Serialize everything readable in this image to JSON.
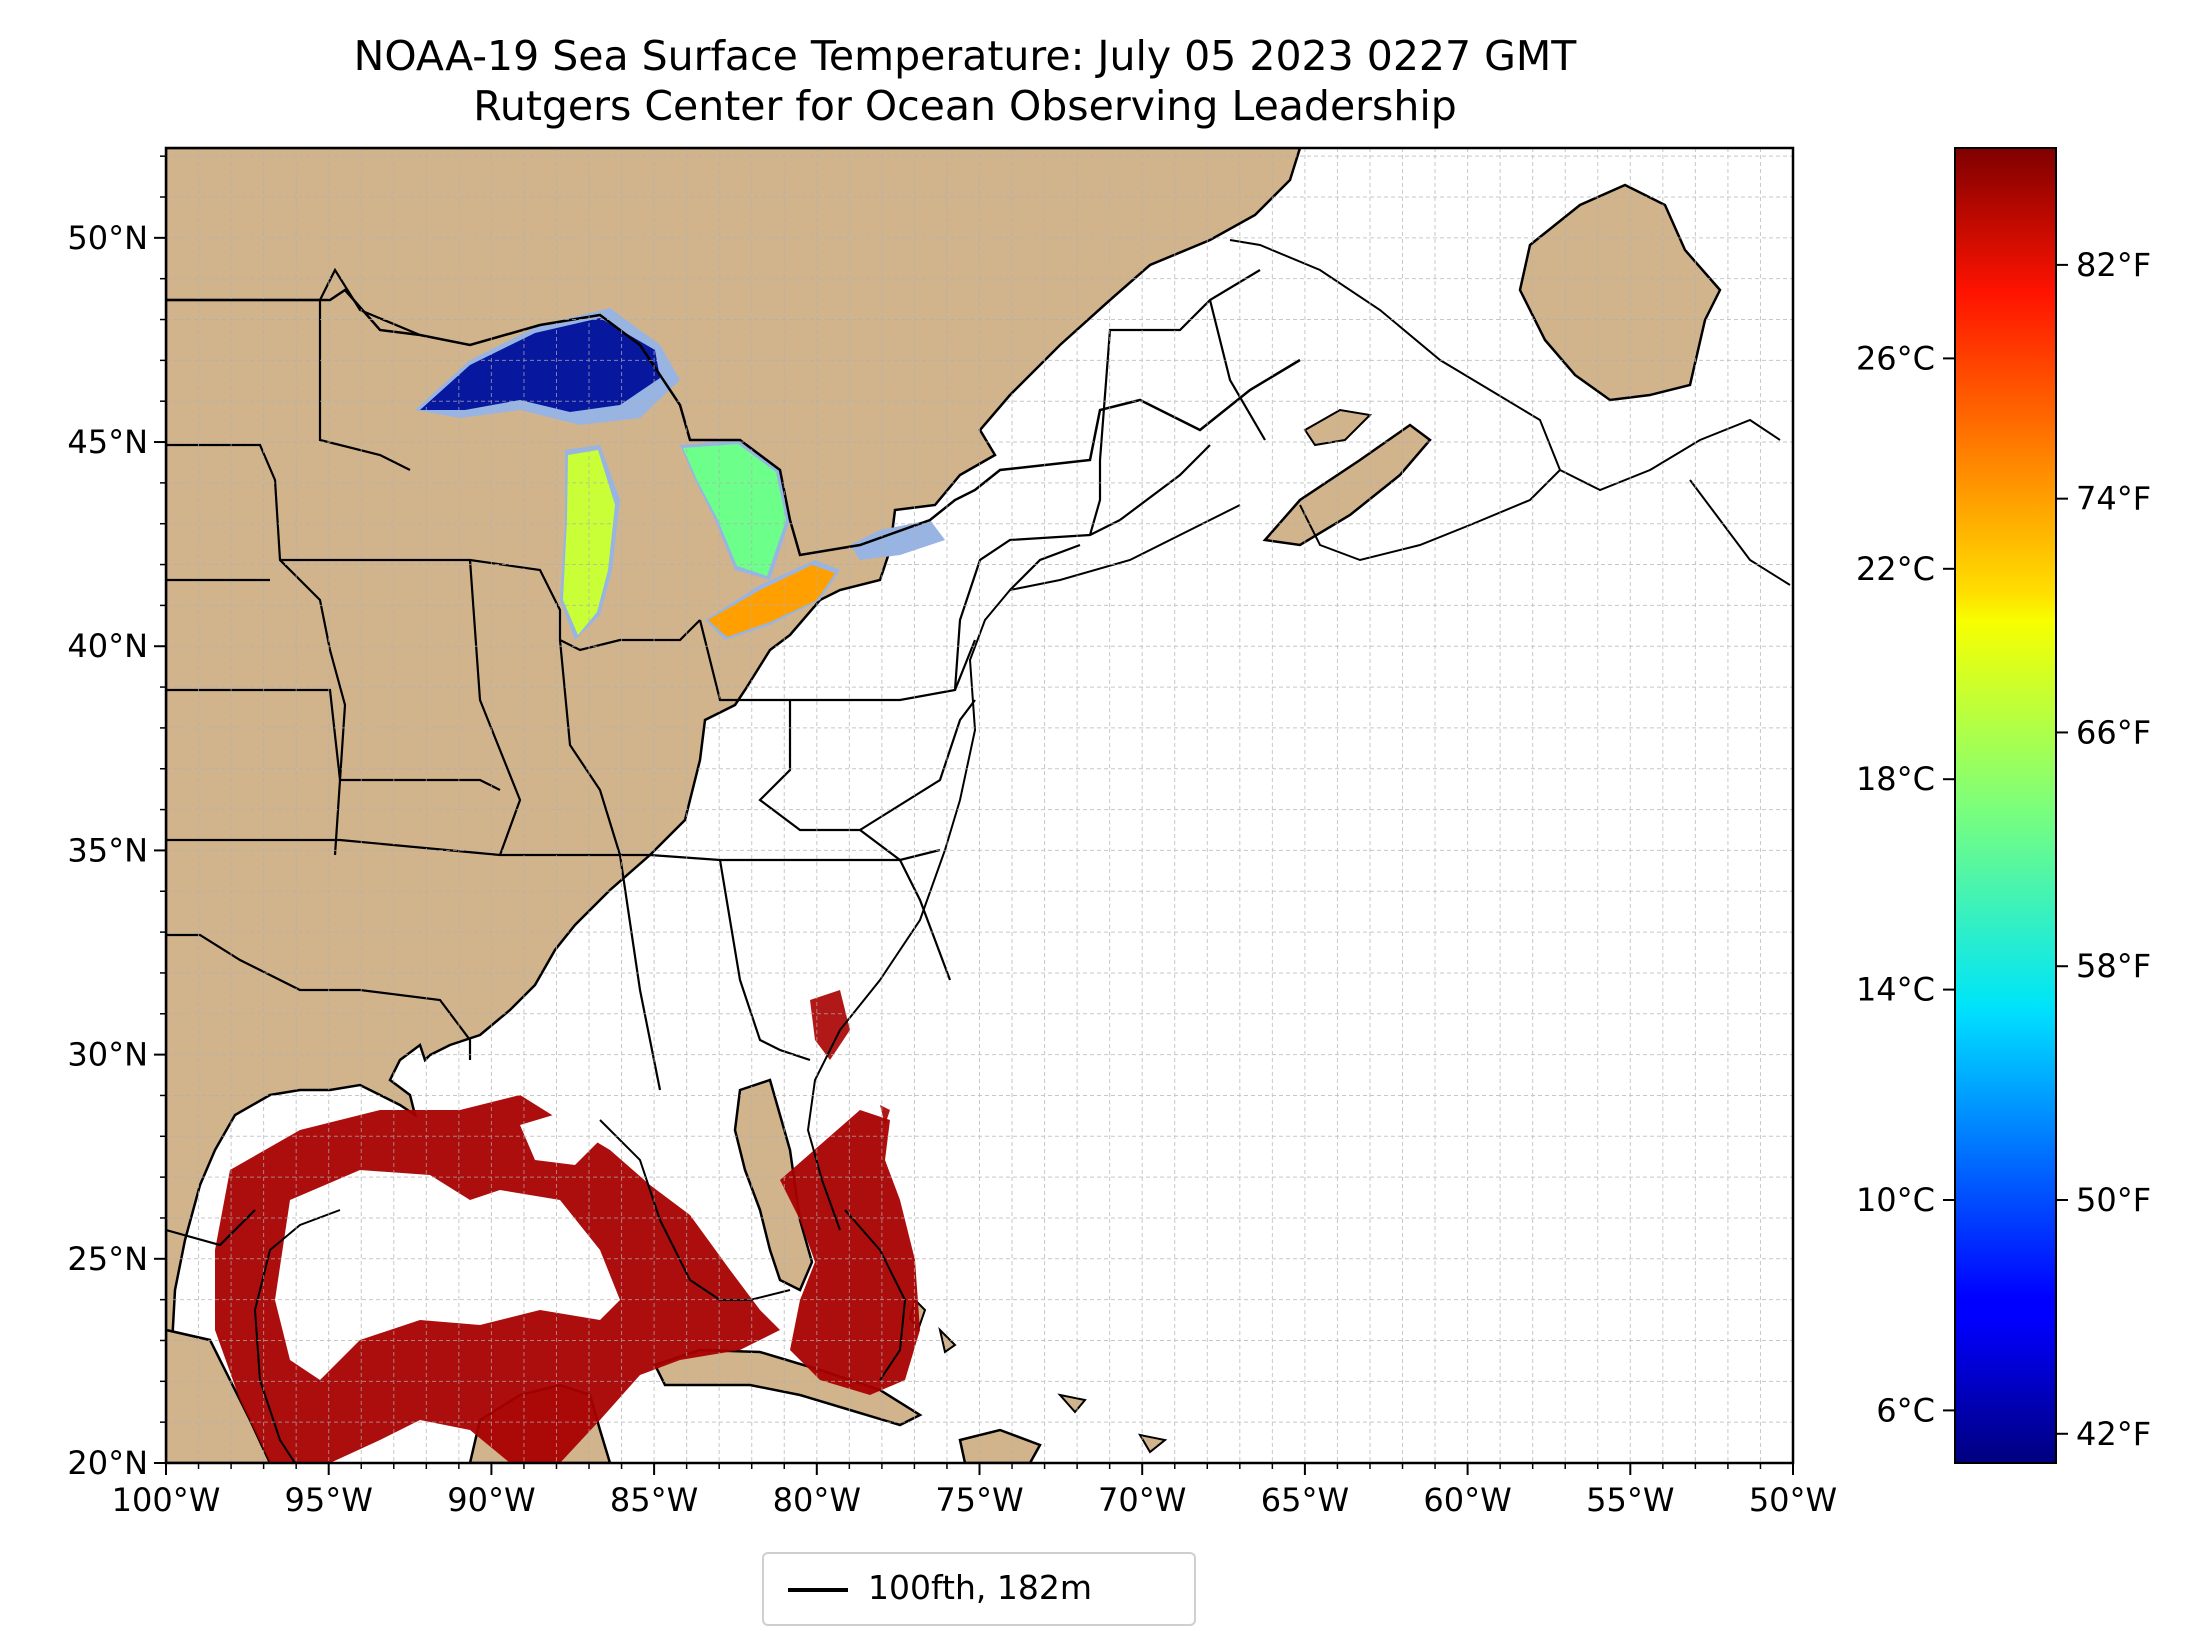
{
  "title": "NOAA-19 Sea Surface Temperature: July 05 2023 0227 GMT",
  "subtitle": "Rutgers Center for Ocean Observing Leadership",
  "map": {
    "lon_range": [
      -100,
      -50
    ],
    "lat_range": [
      20,
      52.2
    ],
    "lon_ticks": [
      "100°W",
      "95°W",
      "90°W",
      "85°W",
      "80°W",
      "75°W",
      "70°W",
      "65°W",
      "60°W",
      "55°W",
      "50°W"
    ],
    "lat_ticks": [
      "20°N",
      "25°N",
      "30°N",
      "35°N",
      "40°N",
      "45°N",
      "50°N"
    ],
    "gridlines": true,
    "grid_step_deg": 1,
    "colors": {
      "land": "#d2b48c",
      "lakes": "#98b4e3",
      "ocean": "#ffffff",
      "borders": "#000000",
      "grid": "#b0b0b0"
    }
  },
  "legend": {
    "label": "100fth, 182m",
    "placement": "below-center"
  },
  "colorbar": {
    "colormap": "jet",
    "celsius_range": [
      5,
      30
    ],
    "celsius_ticks": [
      "6°C",
      "10°C",
      "14°C",
      "18°C",
      "22°C",
      "26°C"
    ],
    "fahrenheit_ticks": [
      "42°F",
      "50°F",
      "58°F",
      "66°F",
      "74°F",
      "82°F"
    ]
  },
  "sst_observations": [
    {
      "region": "Lake Superior",
      "temp_c": 6
    },
    {
      "region": "Lake Michigan",
      "temp_c": 19
    },
    {
      "region": "Lake Huron",
      "temp_c": 18
    },
    {
      "region": "Lake Erie",
      "temp_c": 23
    },
    {
      "region": "Gulf of Mexico",
      "temp_c": 30
    },
    {
      "region": "Florida Straits",
      "temp_c": 30
    }
  ]
}
